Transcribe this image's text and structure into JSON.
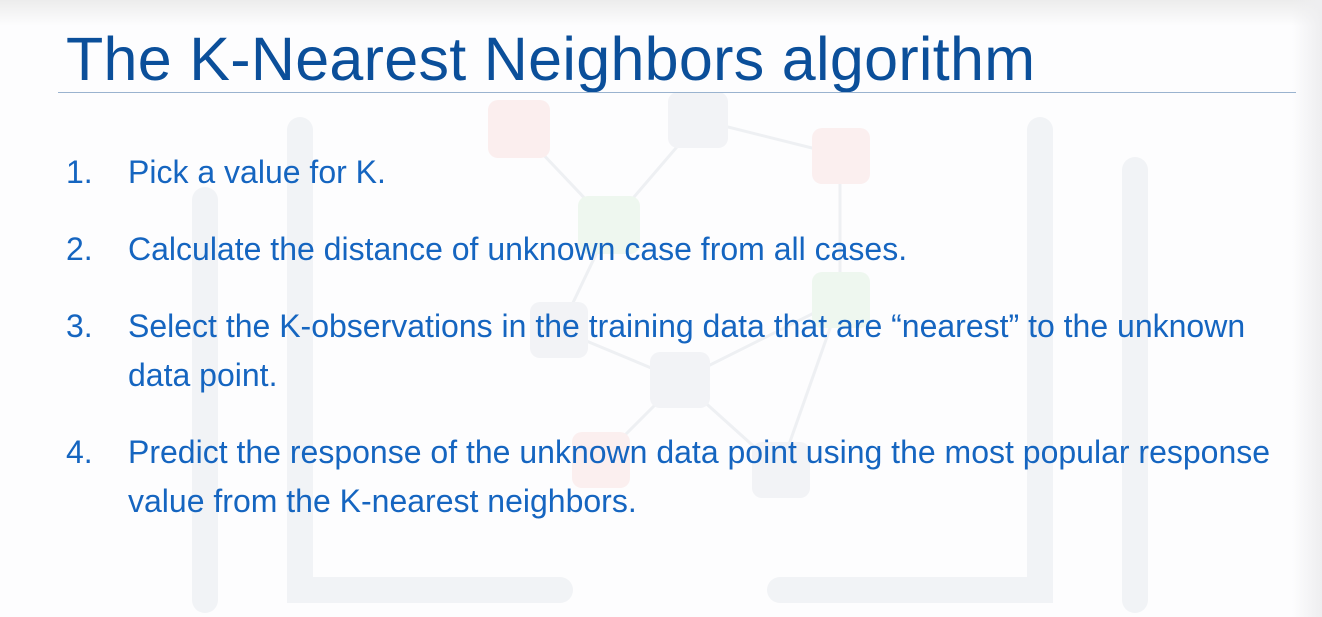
{
  "slide": {
    "title": "The K-Nearest Neighbors algorithm",
    "steps": [
      {
        "number": "1.",
        "text": "Pick a value for K."
      },
      {
        "number": "2.",
        "text": "Calculate the distance of unknown case from all cases."
      },
      {
        "number": "3.",
        "text": "Select the K-observations in the training data that are “nearest” to the unknown data point."
      },
      {
        "number": "4.",
        "text": "Predict the response of the unknown data point using the most popular response value from the K-nearest neighbors."
      }
    ]
  },
  "colors": {
    "title": "#0b4f9a",
    "body_text": "#1565c0",
    "rule": "#9ab3cf",
    "background": "#fdfdfe"
  }
}
